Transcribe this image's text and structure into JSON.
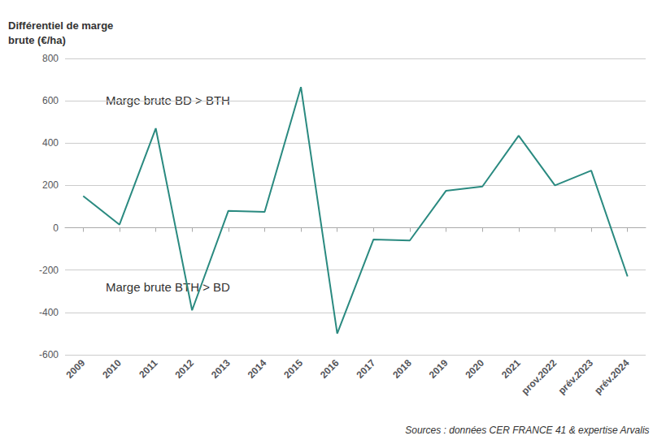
{
  "chart_data": {
    "type": "line",
    "categories": [
      "2009",
      "2010",
      "2011",
      "2012",
      "2013",
      "2014",
      "2015",
      "2016",
      "2017",
      "2018",
      "2019",
      "2020",
      "2021",
      "prov.2022",
      "prév.2023",
      "prév.2024"
    ],
    "values": [
      150,
      15,
      470,
      -390,
      80,
      75,
      665,
      -500,
      -55,
      -60,
      175,
      195,
      435,
      200,
      270,
      -230
    ],
    "color": "#2a8a80",
    "ylabel": "Différentiel de marge\nbrute (€/ha)",
    "annotations": [
      "Marge brute BD > BTH",
      "Marge brute BTH > BD",
      "Sources : données CER FRANCE 41 & expertise Arvalis"
    ],
    "ylim": [
      -600,
      800
    ],
    "yticks": [
      -600,
      -400,
      -200,
      0,
      200,
      400,
      600,
      800
    ],
    "grid": true
  }
}
